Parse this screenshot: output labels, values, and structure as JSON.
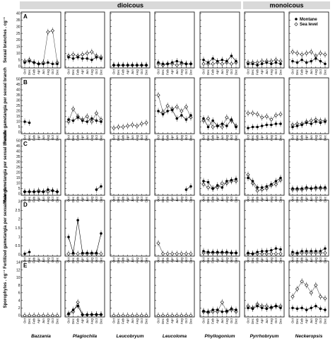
{
  "chart_data": {
    "type": "scatter",
    "headers": [
      {
        "label": "dioicous",
        "first_col": 0,
        "last_col": 4
      },
      {
        "label": "monoicous",
        "first_col": 5,
        "last_col": 6
      }
    ],
    "genera": [
      "Bazzania",
      "Plagiochila",
      "Leucobryum",
      "Leucoloma",
      "Phyllogonium",
      "Pyrrhobryum",
      "Neckeropsis"
    ],
    "months": [
      "Oct",
      "Dec",
      "Feb",
      "Apr",
      "Jun",
      "Aug",
      "Oct",
      "Dec"
    ],
    "legend": {
      "position": "top-right",
      "entries": [
        {
          "name": "Montane",
          "marker": "filled-circle"
        },
        {
          "name": "Sea level",
          "marker": "open-diamond"
        }
      ]
    },
    "series_names": [
      "Montane",
      "Sea level"
    ],
    "rows": [
      {
        "letter": "A",
        "ylabel": "Sexual branches . cg⁻¹",
        "ylim": [
          0,
          40
        ],
        "ticks": [
          0,
          5,
          10,
          15,
          20,
          25,
          30,
          35,
          40
        ]
      },
      {
        "letter": "B",
        "ylabel": "Female gametangia per sexual branch",
        "ylim": [
          0,
          50
        ],
        "ticks": [
          0,
          5,
          10,
          15,
          20,
          25,
          30,
          35,
          40,
          45,
          50
        ]
      },
      {
        "letter": "C",
        "ylabel": "Male gametangia per sexual branch",
        "ylim": [
          0,
          50
        ],
        "ticks": [
          0,
          5,
          10,
          15,
          20,
          25,
          30,
          35,
          40,
          45,
          50
        ]
      },
      {
        "letter": "D",
        "ylabel": "Fertilized gametangia per sexual branch",
        "ylim": [
          0,
          3
        ],
        "ticks": [
          0,
          0.5,
          1,
          1.5,
          2,
          2.5,
          3
        ]
      },
      {
        "letter": "E",
        "ylabel": "Sporophytes . cg⁻¹",
        "ylim": [
          0,
          14
        ],
        "ticks": [
          0,
          2,
          4,
          6,
          8,
          10,
          12,
          14
        ]
      }
    ],
    "panels": [
      [
        {
          "montane": [
            3,
            4,
            3,
            2,
            2,
            3,
            2,
            2
          ],
          "sea": [
            4,
            5,
            3,
            2,
            3,
            26,
            27,
            3
          ]
        },
        {
          "montane": [
            7,
            6,
            7,
            6,
            6,
            5,
            7,
            6
          ],
          "sea": [
            8,
            9,
            8,
            9,
            10,
            11,
            8,
            7
          ]
        },
        {
          "montane": [
            1,
            1,
            1,
            1,
            1,
            1,
            1,
            1
          ],
          "sea": [
            1,
            1,
            1,
            1,
            1,
            1,
            1,
            1
          ]
        },
        {
          "montane": [
            3,
            2,
            2,
            3,
            4,
            3,
            2,
            2
          ],
          "sea": [
            2,
            1,
            2,
            2,
            1,
            2,
            2,
            2
          ]
        },
        {
          "montane": [
            5,
            3,
            6,
            4,
            5,
            4,
            8,
            4
          ],
          "sea": [
            2,
            2,
            2,
            3,
            2,
            3,
            2,
            3
          ]
        },
        {
          "montane": [
            2,
            2,
            1,
            2,
            3,
            2,
            3,
            2
          ],
          "sea": [
            3,
            3,
            3,
            4,
            4,
            4,
            5,
            4
          ]
        },
        {
          "montane": [
            4,
            3,
            5,
            3,
            4,
            6,
            4,
            2
          ],
          "sea": [
            11,
            10,
            9,
            10,
            11,
            8,
            10,
            9
          ]
        }
      ],
      [
        {
          "montane": [
            10,
            9
          ],
          "sea": []
        },
        {
          "montane": [
            12,
            11,
            14,
            11,
            10,
            13,
            11,
            10
          ],
          "sea": [
            10,
            22,
            15,
            12,
            15,
            10,
            18,
            12
          ]
        },
        {
          "montane": [],
          "sea": [
            4,
            5,
            5,
            6,
            7,
            6,
            8,
            9
          ]
        },
        {
          "montane": [
            20,
            17,
            20,
            21,
            13,
            16,
            12,
            16
          ],
          "sea": [
            35,
            19,
            25,
            22,
            24,
            20,
            24,
            14
          ]
        },
        {
          "montane": [
            13,
            5,
            11,
            6,
            8,
            6,
            12,
            5
          ],
          "sea": [
            11,
            13,
            5,
            6,
            5,
            14,
            11,
            6
          ]
        },
        {
          "montane": [
            4,
            5,
            5,
            6,
            7,
            7,
            8,
            8
          ],
          "sea": [
            18,
            18,
            17,
            14,
            15,
            12,
            16,
            17
          ]
        },
        {
          "montane": [
            5,
            6,
            7,
            9,
            8,
            10,
            9,
            10
          ],
          "sea": [
            7,
            8,
            8,
            10,
            11,
            12,
            11,
            11
          ]
        }
      ],
      [
        {
          "montane": [
            2,
            2,
            2,
            2,
            2,
            4,
            3,
            2
          ],
          "sea": [
            2,
            2,
            2,
            3,
            2,
            2,
            3,
            2
          ]
        },
        {
          "montane": [
            null,
            null,
            null,
            null,
            null,
            null,
            4,
            7
          ],
          "sea": []
        },
        {
          "montane": [],
          "sea": []
        },
        {
          "montane": [
            null,
            null,
            null,
            null,
            null,
            null,
            4,
            7
          ],
          "sea": []
        },
        {
          "montane": [
            12,
            11,
            5,
            8,
            6,
            12,
            13,
            14
          ],
          "sea": [
            9,
            6,
            5,
            6,
            10,
            10,
            12,
            12
          ]
        },
        {
          "montane": [
            15,
            12,
            6,
            6,
            7,
            9,
            12,
            15
          ],
          "sea": [
            18,
            10,
            3,
            4,
            5,
            8,
            9,
            13
          ]
        },
        {
          "montane": [
            5,
            5,
            5,
            6,
            5,
            6,
            6,
            6
          ],
          "sea": [
            4,
            4,
            4,
            5,
            5,
            5,
            5,
            5
          ]
        }
      ],
      [
        {
          "montane": [
            0.05,
            0.15
          ],
          "sea": []
        },
        {
          "montane": [
            1.0,
            0.1,
            1.95,
            0.1,
            0.1,
            0.1,
            0.1,
            1.2
          ],
          "sea": [
            0.05,
            0.05,
            0.05,
            0.05,
            0.05,
            0.05,
            0.05,
            0.05
          ]
        },
        {
          "montane": [],
          "sea": []
        },
        {
          "montane": [],
          "sea": [
            0.65,
            0.05,
            0.05,
            0.05,
            0.05,
            0.05,
            0.05,
            0.05
          ]
        },
        {
          "montane": [
            0.2,
            0.15,
            0.15,
            0.15,
            0.15,
            0.15,
            0.1,
            0.1
          ],
          "sea": [
            0.1,
            0.1,
            0.1,
            0.1,
            0.1,
            0.1,
            0.1,
            0.1
          ]
        },
        {
          "montane": [
            0.1,
            0.05,
            0.15,
            0.2,
            0.2,
            0.25,
            0.35,
            0.3
          ],
          "sea": [
            0.05,
            0.05,
            0.05,
            0.05,
            0.05,
            0.05,
            0.05,
            0.05
          ]
        },
        {
          "montane": [
            0.15,
            0.1,
            0.2,
            0.2,
            0.2,
            0.2,
            0.2,
            0.35
          ],
          "sea": [
            0.05,
            0.05,
            0.1,
            0.1,
            0.1,
            0.1,
            0.1,
            0.1
          ]
        }
      ],
      [
        {
          "montane": [],
          "sea": [
            0,
            0,
            0,
            0,
            0,
            0,
            0,
            0
          ]
        },
        {
          "montane": [
            0.5,
            1.5,
            2.5,
            0.2,
            0.2,
            0.3,
            0.3,
            0.3
          ],
          "sea": [
            0.3,
            1.0,
            3.5,
            0.2,
            0.2,
            0.2,
            0.2,
            0.2
          ]
        },
        {
          "montane": [],
          "sea": [
            0,
            0,
            0,
            0,
            0,
            0,
            0,
            0
          ]
        },
        {
          "montane": [],
          "sea": [
            0,
            0,
            0,
            0,
            0,
            0,
            0,
            0
          ]
        },
        {
          "montane": [
            1.2,
            1.0,
            1.5,
            1.5,
            1.0,
            1.2,
            1.8,
            1.5
          ],
          "sea": [
            1.0,
            0.8,
            1.0,
            1.0,
            3.5,
            1.0,
            1.5,
            1.0
          ]
        },
        {
          "montane": [
            2.0,
            1.8,
            2.5,
            2.0,
            1.8,
            2.2,
            2.5,
            2.0
          ],
          "sea": [
            2.5,
            2.0,
            3.0,
            2.5,
            2.5,
            2.0,
            2.5,
            2.5
          ]
        },
        {
          "montane": [
            2.0,
            1.8,
            2.0,
            1.5,
            2.0,
            2.5,
            1.8,
            1.5
          ],
          "sea": [
            5.0,
            7.0,
            9.0,
            8.0,
            6.0,
            8.0,
            5.0,
            4.5
          ]
        }
      ]
    ]
  }
}
